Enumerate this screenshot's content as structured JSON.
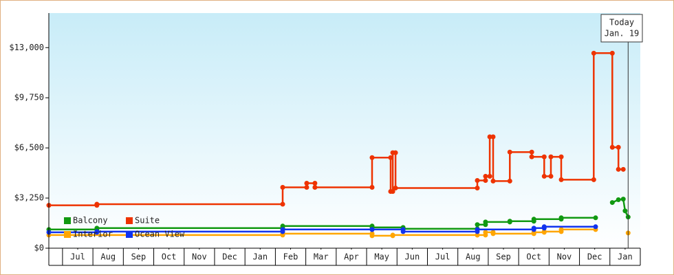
{
  "chart_data": {
    "type": "line",
    "xlim": [
      0.55,
      20
    ],
    "ylim": [
      0,
      15240
    ],
    "xticks": [
      {
        "value": 1.5,
        "label": "Jul"
      },
      {
        "value": 2.5,
        "label": "Aug"
      },
      {
        "value": 3.5,
        "label": "Sep"
      },
      {
        "value": 4.5,
        "label": "Oct"
      },
      {
        "value": 5.5,
        "label": "Nov"
      },
      {
        "value": 6.5,
        "label": "Dec"
      },
      {
        "value": 7.5,
        "label": "Jan"
      },
      {
        "value": 8.5,
        "label": "Feb"
      },
      {
        "value": 9.5,
        "label": "Mar"
      },
      {
        "value": 10.5,
        "label": "Apr"
      },
      {
        "value": 11.5,
        "label": "May"
      },
      {
        "value": 12.5,
        "label": "Jun"
      },
      {
        "value": 13.5,
        "label": "Jul"
      },
      {
        "value": 14.5,
        "label": "Aug"
      },
      {
        "value": 15.5,
        "label": "Sep"
      },
      {
        "value": 16.5,
        "label": "Oct"
      },
      {
        "value": 17.5,
        "label": "Nov"
      },
      {
        "value": 18.5,
        "label": "Dec"
      },
      {
        "value": 19.5,
        "label": "Jan"
      }
    ],
    "yticks": [
      {
        "value": 0,
        "label": "$0"
      },
      {
        "value": 3250,
        "label": "$3,250"
      },
      {
        "value": 6500,
        "label": "$6,500"
      },
      {
        "value": 9750,
        "label": "$9,750"
      },
      {
        "value": 13000,
        "label": "$13,000"
      }
    ],
    "today": {
      "x": 19.6,
      "label": [
        "Today",
        "Jan. 19"
      ]
    },
    "series": [
      {
        "name": "Balcony",
        "color": "#119911",
        "x": [
          0.55,
          2.13,
          2.13,
          8.24,
          8.24,
          11.18,
          11.18,
          12.2,
          12.2,
          14.64,
          14.64,
          14.91,
          14.91,
          15.71,
          15.71,
          16.5,
          16.5,
          17.4,
          17.4,
          18.53,
          18.8,
          19.08,
          19.28,
          19.44,
          19.5,
          19.6
        ],
        "values": [
          1210,
          1210,
          1300,
          1300,
          1435,
          1435,
          1345,
          1345,
          1255,
          1255,
          1525,
          1525,
          1700,
          1700,
          1750,
          1750,
          1880,
          1880,
          1970,
          1970,
          null,
          2960,
          3140,
          3180,
          2420,
          2020
        ]
      },
      {
        "name": "Suite",
        "color": "#ee3300",
        "x": [
          0.55,
          2.13,
          2.13,
          8.24,
          8.24,
          9.03,
          9.03,
          9.3,
          9.3,
          11.18,
          11.18,
          11.79,
          11.79,
          11.86,
          11.86,
          11.95,
          11.95,
          14.64,
          14.64,
          14.91,
          14.91,
          15.05,
          15.05,
          15.16,
          15.16,
          15.71,
          15.71,
          16.43,
          16.43,
          16.84,
          16.84,
          17.06,
          17.06,
          17.4,
          17.4,
          18.47,
          18.47,
          19.08,
          19.08,
          19.28,
          19.28,
          19.44
        ],
        "values": [
          2780,
          2780,
          2850,
          2850,
          3945,
          3945,
          4210,
          4210,
          3945,
          3945,
          5870,
          5870,
          3675,
          3675,
          6190,
          6190,
          3900,
          3900,
          4390,
          4390,
          4660,
          4660,
          7220,
          7220,
          4350,
          4350,
          6230,
          6230,
          5920,
          5920,
          4660,
          4660,
          5920,
          5920,
          4440,
          4440,
          12640,
          12640,
          6540,
          6540,
          5110,
          5110
        ]
      },
      {
        "name": "Interior",
        "color": "#ffa500",
        "x": [
          0.55,
          8.24,
          8.24,
          11.18,
          11.18,
          11.86,
          11.86,
          14.64,
          14.64,
          14.91,
          14.91,
          15.16,
          15.16,
          16.5,
          16.5,
          16.84,
          16.84,
          17.4,
          17.4,
          18.53,
          18.8,
          19.6
        ],
        "values": [
          850,
          850,
          940,
          940,
          805,
          805,
          850,
          850,
          850,
          850,
          1030,
          1030,
          940,
          940,
          1030,
          1030,
          1075,
          1075,
          1210,
          1210,
          null,
          985
        ]
      },
      {
        "name": "Ocean View",
        "color": "#1133ee",
        "x": [
          0.55,
          2.13,
          2.13,
          8.24,
          8.24,
          11.18,
          11.18,
          12.2,
          12.2,
          14.64,
          14.64,
          16.5,
          16.5,
          16.84,
          16.84,
          18.53
        ],
        "values": [
          1030,
          1030,
          1075,
          1075,
          1210,
          1210,
          1210,
          1210,
          1075,
          1075,
          1210,
          1210,
          1300,
          1300,
          1390,
          1390
        ]
      }
    ]
  }
}
